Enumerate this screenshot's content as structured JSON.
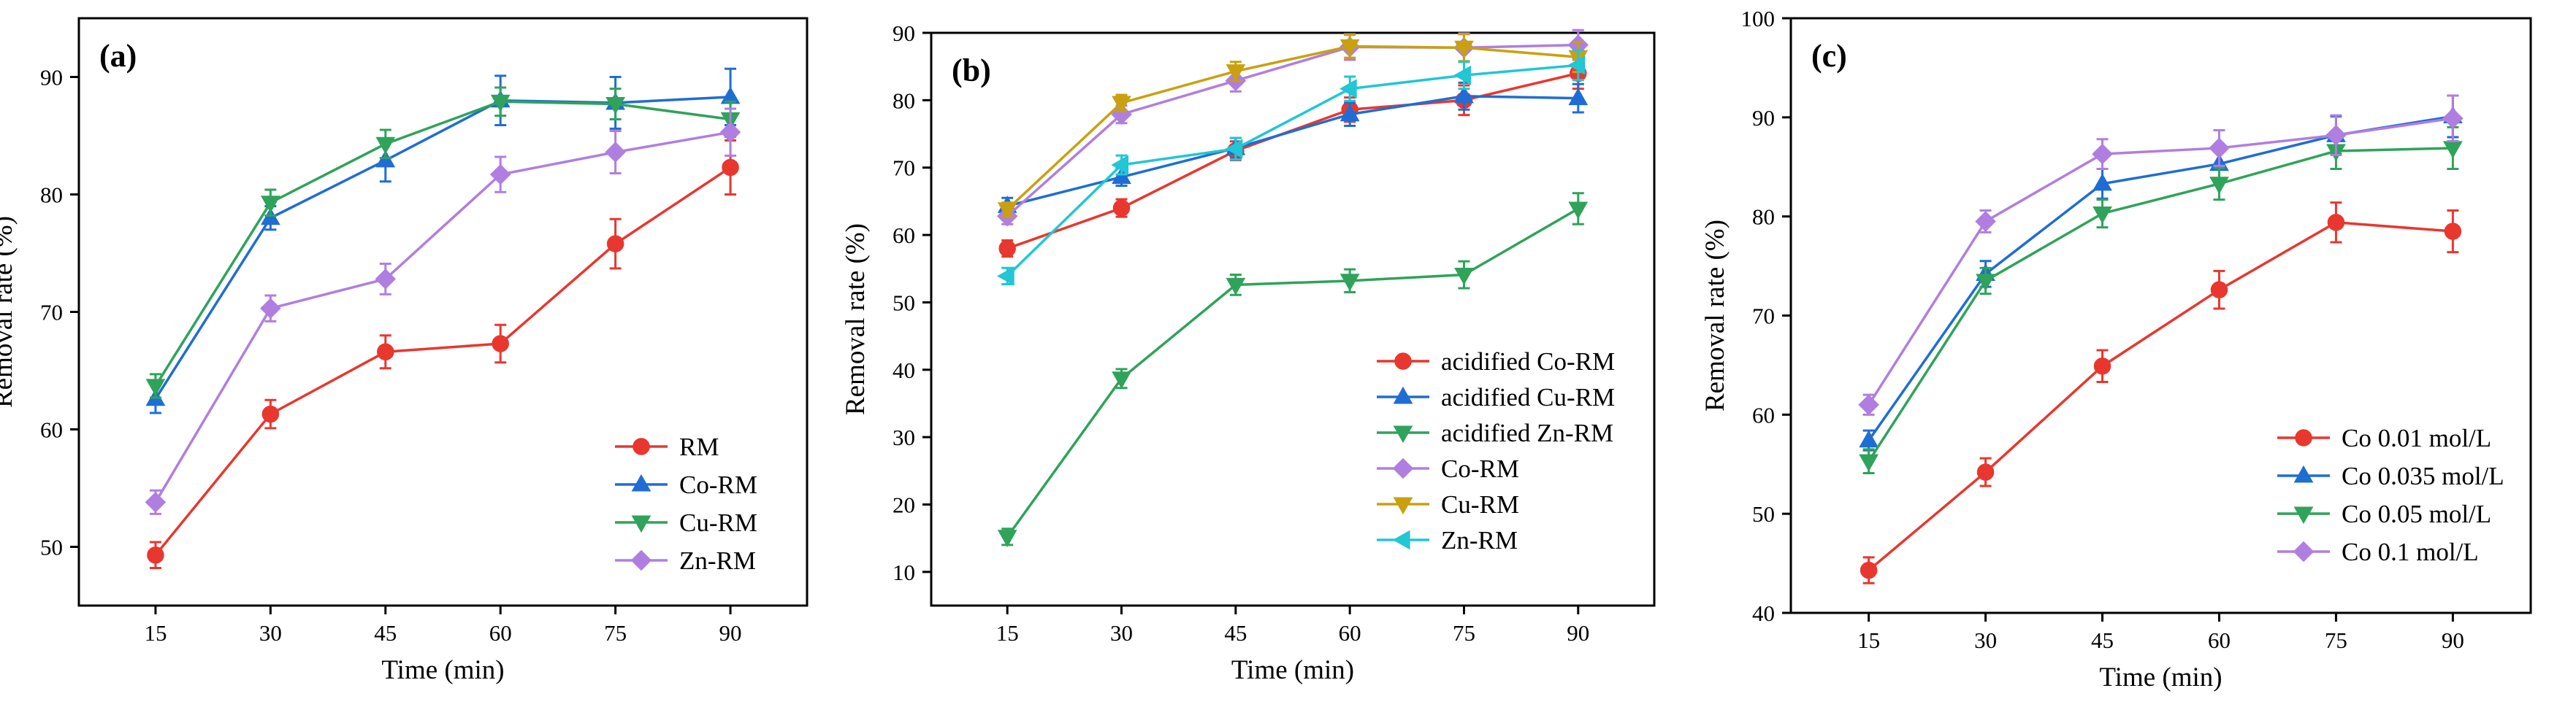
{
  "colors": {
    "red": "#e8372f",
    "blue": "#1f6dd4",
    "green": "#2fa35a",
    "purple": "#b07ee0",
    "gold": "#c9a10f",
    "cyan": "#22c6d4"
  },
  "chart_data": [
    {
      "type": "line",
      "panel_label": "(a)",
      "xlabel": "Time (min)",
      "ylabel": "Removal rate (%)",
      "x": [
        15,
        30,
        45,
        60,
        75,
        90
      ],
      "xticks": [
        "15",
        "30",
        "45",
        "60",
        "75",
        "90"
      ],
      "xlim": [
        5,
        100
      ],
      "ylim": [
        45,
        95
      ],
      "yticks": [
        "50",
        "60",
        "70",
        "80",
        "90"
      ],
      "legend_position": "bottom-right",
      "series": [
        {
          "name": "RM",
          "color": "red",
          "marker": "circle",
          "values": [
            49.3,
            61.3,
            66.6,
            67.3,
            75.8,
            82.3
          ],
          "errors": [
            1.1,
            1.2,
            1.4,
            1.6,
            2.1,
            2.3
          ]
        },
        {
          "name": "Co-RM",
          "color": "blue",
          "marker": "triangle-up",
          "values": [
            62.6,
            78.0,
            82.9,
            88.0,
            87.8,
            88.3
          ],
          "errors": [
            1.2,
            1.0,
            1.8,
            2.1,
            2.2,
            2.4
          ]
        },
        {
          "name": "Cu-RM",
          "color": "green",
          "marker": "triangle-down",
          "values": [
            63.7,
            79.3,
            84.3,
            87.9,
            87.7,
            86.4
          ],
          "errors": [
            1.0,
            1.1,
            1.2,
            1.2,
            1.3,
            1.5
          ]
        },
        {
          "name": "Zn-RM",
          "color": "purple",
          "marker": "diamond",
          "values": [
            53.8,
            70.3,
            72.8,
            81.7,
            83.6,
            85.3
          ],
          "errors": [
            1.0,
            1.1,
            1.3,
            1.5,
            1.8,
            2.0
          ]
        }
      ]
    },
    {
      "type": "line",
      "panel_label": "(b)",
      "xlabel": "Time (min)",
      "ylabel": "Removal rate (%)",
      "x": [
        15,
        30,
        45,
        60,
        75,
        90
      ],
      "xticks": [
        "15",
        "30",
        "45",
        "60",
        "75",
        "90"
      ],
      "xlim": [
        5,
        100
      ],
      "ylim": [
        5,
        90
      ],
      "yticks": [
        "10",
        "20",
        "30",
        "40",
        "50",
        "60",
        "70",
        "80",
        "90"
      ],
      "legend_position": "bottom-right",
      "series": [
        {
          "name": "acidified Co-RM",
          "color": "red",
          "marker": "circle",
          "values": [
            58.0,
            64.0,
            72.5,
            78.6,
            80.0,
            84.0
          ],
          "errors": [
            1.2,
            1.3,
            1.4,
            1.8,
            2.2,
            2.3
          ]
        },
        {
          "name": "acidified Cu-RM",
          "color": "blue",
          "marker": "triangle-up",
          "values": [
            64.3,
            68.6,
            72.9,
            77.9,
            80.6,
            80.3
          ],
          "errors": [
            1.2,
            1.3,
            1.5,
            1.7,
            2.0,
            2.1
          ]
        },
        {
          "name": "acidified Zn-RM",
          "color": "green",
          "marker": "triangle-down",
          "values": [
            15.2,
            38.7,
            52.6,
            53.2,
            54.1,
            63.9
          ],
          "errors": [
            1.2,
            1.4,
            1.5,
            1.7,
            2.0,
            2.3
          ]
        },
        {
          "name": "Co-RM",
          "color": "purple",
          "marker": "diamond",
          "values": [
            62.8,
            77.9,
            82.9,
            87.9,
            87.8,
            88.2
          ],
          "errors": [
            1.2,
            1.3,
            1.6,
            1.9,
            2.1,
            2.2
          ]
        },
        {
          "name": "Cu-RM",
          "color": "gold",
          "marker": "triangle-down",
          "values": [
            63.8,
            79.6,
            84.3,
            88.0,
            87.8,
            86.4
          ],
          "errors": [
            1.0,
            1.2,
            1.4,
            1.7,
            2.0,
            2.2
          ]
        },
        {
          "name": "Zn-RM",
          "color": "cyan",
          "marker": "triangle-left",
          "values": [
            53.9,
            70.4,
            72.8,
            81.7,
            83.7,
            85.2
          ],
          "errors": [
            1.2,
            1.4,
            1.6,
            1.8,
            2.0,
            2.2
          ]
        }
      ]
    },
    {
      "type": "line",
      "panel_label": "(c)",
      "xlabel": "Time (min)",
      "ylabel": "Removal rate (%)",
      "x": [
        15,
        30,
        45,
        60,
        75,
        90
      ],
      "xticks": [
        "15",
        "30",
        "45",
        "60",
        "75",
        "90"
      ],
      "xlim": [
        5,
        100
      ],
      "ylim": [
        40,
        100
      ],
      "yticks": [
        "40",
        "50",
        "60",
        "70",
        "80",
        "90",
        "100"
      ],
      "legend_position": "bottom-right",
      "series": [
        {
          "name": "Co 0.01 mol/L",
          "color": "red",
          "marker": "circle",
          "values": [
            44.3,
            54.2,
            64.9,
            72.6,
            79.4,
            78.5
          ],
          "errors": [
            1.3,
            1.4,
            1.6,
            1.9,
            2.0,
            2.1
          ]
        },
        {
          "name": "Co 0.035 mol/L",
          "color": "blue",
          "marker": "triangle-up",
          "values": [
            57.4,
            74.2,
            83.3,
            85.3,
            88.2,
            90.1
          ],
          "errors": [
            1.0,
            1.3,
            1.5,
            1.7,
            1.9,
            2.1
          ]
        },
        {
          "name": "Co 0.05 mol/L",
          "color": "green",
          "marker": "triangle-down",
          "values": [
            55.3,
            73.5,
            80.3,
            83.3,
            86.6,
            86.9
          ],
          "errors": [
            1.2,
            1.3,
            1.4,
            1.6,
            1.8,
            2.1
          ]
        },
        {
          "name": "Co 0.1 mol/L",
          "color": "purple",
          "marker": "diamond",
          "values": [
            61.0,
            79.5,
            86.3,
            86.9,
            88.2,
            89.9
          ],
          "errors": [
            1.0,
            1.1,
            1.5,
            1.8,
            2.0,
            2.3
          ]
        }
      ]
    }
  ]
}
